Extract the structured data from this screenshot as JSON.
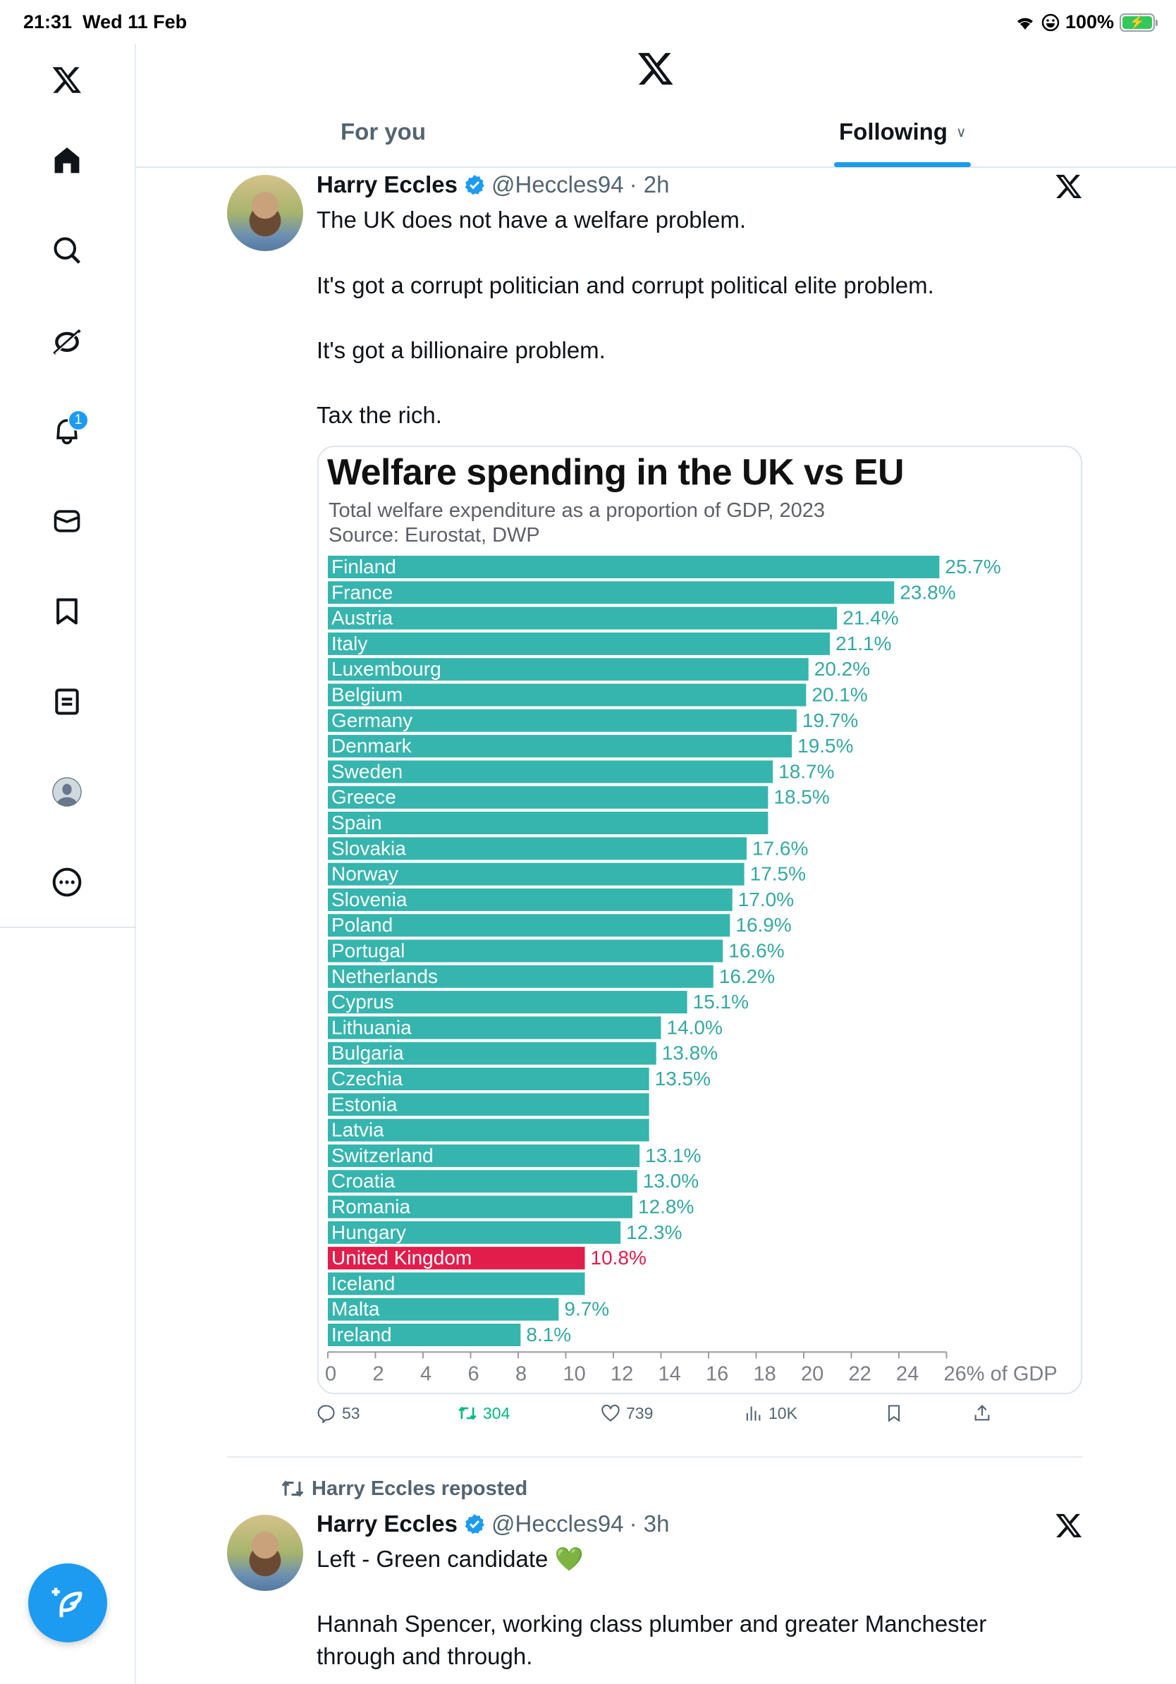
{
  "status_bar": {
    "time": "21:31",
    "date": "Wed 11 Feb",
    "battery": "100%"
  },
  "sidebar": {
    "items": [
      {
        "name": "home",
        "icon": "home-icon"
      },
      {
        "name": "explore",
        "icon": "search-icon"
      },
      {
        "name": "grok",
        "icon": "grok-icon"
      },
      {
        "name": "notifications",
        "icon": "bell-icon",
        "badge": "1"
      },
      {
        "name": "messages",
        "icon": "mail-icon"
      },
      {
        "name": "bookmarks",
        "icon": "bookmark-icon"
      },
      {
        "name": "lists",
        "icon": "list-icon"
      },
      {
        "name": "profile",
        "icon": "profile-icon"
      },
      {
        "name": "more",
        "icon": "more-icon"
      }
    ],
    "compose_icon": "compose-icon"
  },
  "header": {
    "tabs": [
      {
        "label": "For you",
        "active": false
      },
      {
        "label": "Following",
        "active": true
      }
    ]
  },
  "tweets": [
    {
      "name": "Harry Eccles",
      "handle": "@Heccles94",
      "time": "· 2h",
      "lines": [
        "The UK does not have a welfare problem.",
        "It's got a corrupt politician and corrupt political elite problem.",
        "It's got a billionaire problem.",
        "Tax the rich."
      ],
      "actions": {
        "replies": "53",
        "reposts": "304",
        "likes": "739",
        "views": "10K"
      }
    },
    {
      "repost_label": "Harry Eccles reposted",
      "name": "Harry Eccles",
      "handle": "@Heccles94",
      "time": "· 3h",
      "lines": [
        "Left - Green candidate 💚",
        "Hannah Spencer, working class plumber and greater Manchester",
        "through and through."
      ]
    }
  ],
  "colors": {
    "accent": "#1d9bf0",
    "bar": "#35b5ae",
    "highlight": "#e21d4b",
    "label": "#35a8a1",
    "repost_green": "#00ba7c"
  },
  "chart_data": {
    "type": "bar",
    "orientation": "horizontal",
    "title": "Welfare spending in the UK vs EU",
    "subtitle": "Total welfare expenditure as a proportion of GDP, 2023",
    "source": "Source: Eurostat, DWP",
    "xlabel": "% of GDP",
    "xlim": [
      0,
      26
    ],
    "xticks": [
      "0",
      "2",
      "4",
      "6",
      "8",
      "10",
      "12",
      "14",
      "16",
      "18",
      "20",
      "22",
      "24",
      "26% of GDP"
    ],
    "highlight": "United Kingdom",
    "categories": [
      "Finland",
      "France",
      "Austria",
      "Italy",
      "Luxembourg",
      "Belgium",
      "Germany",
      "Denmark",
      "Sweden",
      "Greece",
      "Spain",
      "Slovakia",
      "Norway",
      "Slovenia",
      "Poland",
      "Portugal",
      "Netherlands",
      "Cyprus",
      "Lithuania",
      "Bulgaria",
      "Czechia",
      "Estonia",
      "Latvia",
      "Switzerland",
      "Croatia",
      "Romania",
      "Hungary",
      "United Kingdom",
      "Iceland",
      "Malta",
      "Ireland"
    ],
    "values": [
      25.7,
      23.8,
      21.4,
      21.1,
      20.2,
      20.1,
      19.7,
      19.5,
      18.7,
      18.5,
      18.5,
      17.6,
      17.5,
      17.0,
      16.9,
      16.6,
      16.2,
      15.1,
      14.0,
      13.8,
      13.5,
      13.5,
      13.5,
      13.1,
      13.0,
      12.8,
      12.3,
      10.8,
      10.8,
      9.7,
      8.1
    ],
    "labels": [
      "25.7%",
      "23.8%",
      "21.4%",
      "21.1%",
      "20.2%",
      "20.1%",
      "19.7%",
      "19.5%",
      "18.7%",
      "18.5%",
      "",
      "17.6%",
      "17.5%",
      "17.0%",
      "16.9%",
      "16.6%",
      "16.2%",
      "15.1%",
      "14.0%",
      "13.8%",
      "13.5%",
      "",
      "",
      "13.1%",
      "13.0%",
      "12.8%",
      "12.3%",
      "10.8%",
      "",
      "9.7%",
      "8.1%"
    ]
  }
}
